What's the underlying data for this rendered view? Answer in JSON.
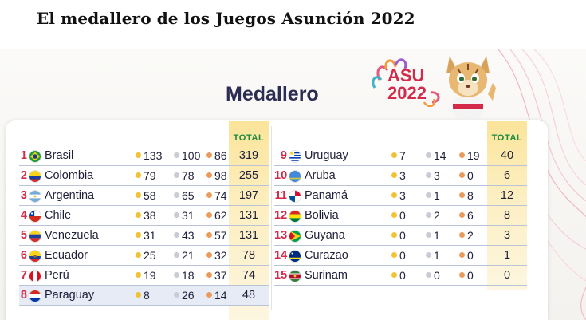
{
  "headline": "El medallero de los Juegos Asunción 2022",
  "title": "Medallero",
  "logo": {
    "line1": "ASU",
    "line2": "2022"
  },
  "total_header": "TOTAL",
  "colors": {
    "gold": "#f1c232",
    "silver": "#c9ccd6",
    "bronze": "#ec9a5a",
    "rank": "#d42a4a",
    "title": "#2c2d52"
  },
  "left_rows": [
    {
      "rank": "1",
      "country": "Brasil",
      "flag": "flag-brazil-icon",
      "gold": "133",
      "silver": "100",
      "bronze": "86",
      "total": "319"
    },
    {
      "rank": "2",
      "country": "Colombia",
      "flag": "flag-colombia-icon",
      "gold": "79",
      "silver": "78",
      "bronze": "98",
      "total": "255"
    },
    {
      "rank": "3",
      "country": "Argentina",
      "flag": "flag-argentina-icon",
      "gold": "58",
      "silver": "65",
      "bronze": "74",
      "total": "197"
    },
    {
      "rank": "4",
      "country": "Chile",
      "flag": "flag-chile-icon",
      "gold": "38",
      "silver": "31",
      "bronze": "62",
      "total": "131"
    },
    {
      "rank": "5",
      "country": "Venezuela",
      "flag": "flag-venezuela-icon",
      "gold": "31",
      "silver": "43",
      "bronze": "57",
      "total": "131"
    },
    {
      "rank": "6",
      "country": "Ecuador",
      "flag": "flag-ecuador-icon",
      "gold": "25",
      "silver": "21",
      "bronze": "32",
      "total": "78"
    },
    {
      "rank": "7",
      "country": "Perú",
      "flag": "flag-peru-icon",
      "gold": "19",
      "silver": "18",
      "bronze": "37",
      "total": "74"
    },
    {
      "rank": "8",
      "country": "Paraguay",
      "flag": "flag-paraguay-icon",
      "gold": "8",
      "silver": "26",
      "bronze": "14",
      "total": "48",
      "highlight": true
    }
  ],
  "right_rows": [
    {
      "rank": "9",
      "country": "Uruguay",
      "flag": "flag-uruguay-icon",
      "gold": "7",
      "silver": "14",
      "bronze": "19",
      "total": "40"
    },
    {
      "rank": "10",
      "country": "Aruba",
      "flag": "flag-aruba-icon",
      "gold": "3",
      "silver": "3",
      "bronze": "0",
      "total": "6"
    },
    {
      "rank": "11",
      "country": "Panamá",
      "flag": "flag-panama-icon",
      "gold": "3",
      "silver": "1",
      "bronze": "8",
      "total": "12"
    },
    {
      "rank": "12",
      "country": "Bolivia",
      "flag": "flag-bolivia-icon",
      "gold": "0",
      "silver": "2",
      "bronze": "6",
      "total": "8"
    },
    {
      "rank": "13",
      "country": "Guyana",
      "flag": "flag-guyana-icon",
      "gold": "0",
      "silver": "1",
      "bronze": "2",
      "total": "3"
    },
    {
      "rank": "14",
      "country": "Curazao",
      "flag": "flag-curacao-icon",
      "gold": "0",
      "silver": "1",
      "bronze": "0",
      "total": "1"
    },
    {
      "rank": "15",
      "country": "Surinam",
      "flag": "flag-suriname-icon",
      "gold": "0",
      "silver": "0",
      "bronze": "0",
      "total": "0"
    }
  ]
}
